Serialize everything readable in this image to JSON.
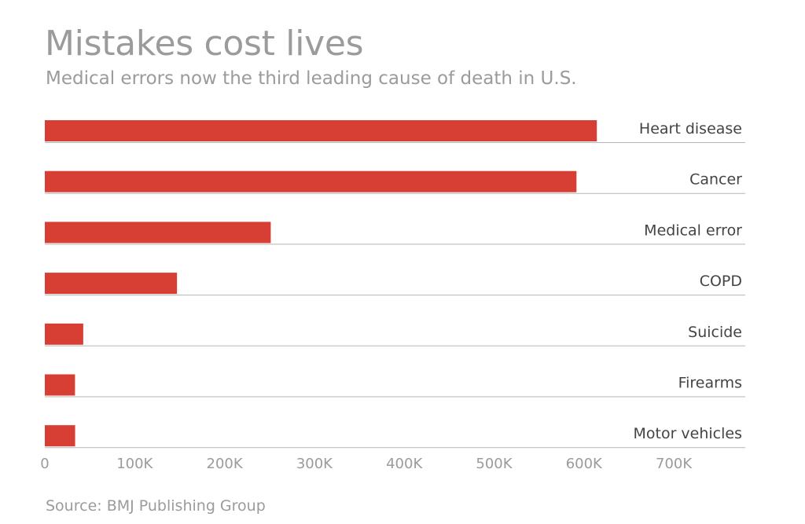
{
  "chart_data": {
    "type": "bar",
    "orientation": "horizontal",
    "title": "Mistakes cost lives",
    "subtitle": "Medical errors now the third leading cause of death in U.S.",
    "source": "Source: BMJ Publishing Group",
    "categories": [
      "Heart disease",
      "Cancer",
      "Medical error",
      "COPD",
      "Suicide",
      "Firearms",
      "Motor vehicles"
    ],
    "values": [
      614348,
      591699,
      251454,
      147101,
      42773,
      33599,
      33736
    ],
    "xlim": [
      0,
      700000
    ],
    "xticks": [
      0,
      100000,
      200000,
      300000,
      400000,
      500000,
      600000,
      700000
    ],
    "xtick_labels": [
      "0",
      "100K",
      "200K",
      "300K",
      "400K",
      "500K",
      "600K",
      "700K"
    ],
    "bar_color": "#d73f34",
    "grid": false,
    "legend": "none"
  }
}
